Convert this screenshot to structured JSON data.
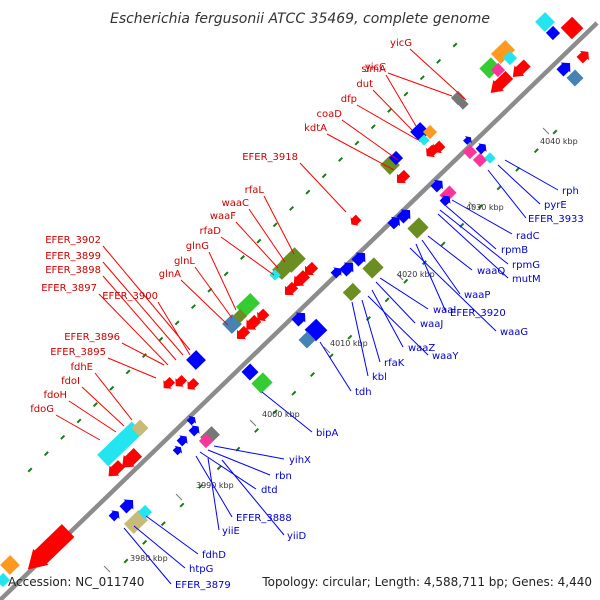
{
  "title": "Escherichia fergusonii ATCC 35469, complete genome",
  "footer": {
    "accession": "Accession: NC_011740",
    "summary": "Topology: circular; Length: 4,588,711 bp; Genes: 4,440"
  },
  "colors": {
    "backbone": "#8c8c8c",
    "forward_label": "#cc0000",
    "reverse_label": "#0000cc",
    "leader_forward": "#ff0000",
    "leader_reverse": "#0000ff",
    "tick": "#1a7a1a",
    "gene_red": "#ff0000",
    "gene_blue": "#0000ff",
    "gene_green": "#33cc33",
    "gene_olive": "#6b8e23",
    "gene_cyan": "#22e5f0",
    "gene_tan": "#c8bb77",
    "gene_orange": "#ff9922",
    "gene_pink": "#ff3399",
    "gene_steel": "#4682b4",
    "gene_grey": "#777777"
  },
  "ticks": [
    "4040 kbp",
    "4030 kbp",
    "4020 kbp",
    "4010 kbp",
    "4000 kbp",
    "3990 kbp",
    "3980 kbp"
  ],
  "forward_labels": [
    "yicC",
    "yicG",
    "slmA",
    "dut",
    "dfp",
    "coaD",
    "kdtA",
    "EFER_3918",
    "rfaL",
    "waaC",
    "waaF",
    "rfaD",
    "glnG",
    "glnL",
    "glnA",
    "EFER_3902",
    "EFER_3899",
    "EFER_3898",
    "EFER_3897",
    "EFER_3900",
    "EFER_3896",
    "EFER_3895",
    "fdhE",
    "fdoI",
    "fdoH",
    "fdoG"
  ],
  "reverse_labels": [
    "rph",
    "pyrE",
    "EFER_3933",
    "radC",
    "rpmB",
    "rpmG",
    "mutM",
    "waaQ",
    "waaP",
    "EFER_3920",
    "waaG",
    "waaI",
    "waaJ",
    "waaZ",
    "waaY",
    "rfaK",
    "kbl",
    "tdh",
    "bipA",
    "yihX",
    "rbn",
    "dtd",
    "EFER_3888",
    "yiiD",
    "yiiE",
    "fdhD",
    "htpG",
    "EFER_3879"
  ]
}
